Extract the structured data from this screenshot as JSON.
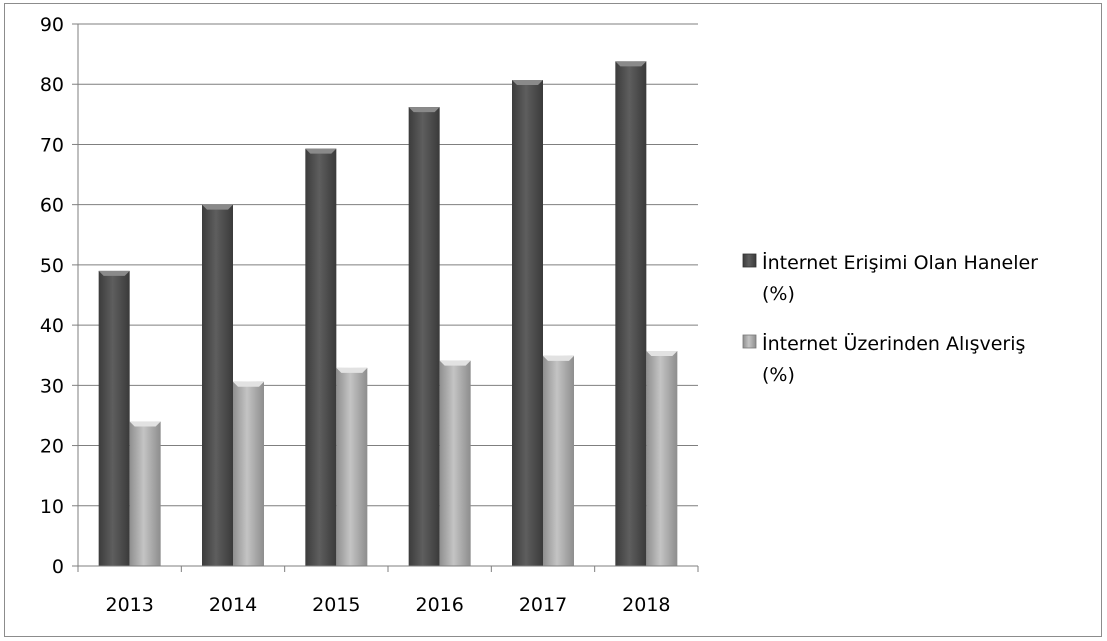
{
  "chart_data": {
    "type": "bar",
    "categories": [
      "2013",
      "2014",
      "2015",
      "2016",
      "2017",
      "2018"
    ],
    "series": [
      {
        "name": "İnternet Erişimi Olan Haneler (%)",
        "name_lines": [
          "İnternet Erişimi Olan Haneler",
          "(%)"
        ],
        "color": "#555555",
        "values": [
          49,
          60,
          69.3,
          76.2,
          80.7,
          83.8
        ]
      },
      {
        "name": "İnternet Üzerinden Alışveriş (%)",
        "name_lines": [
          "İnternet Üzerinden Alışveriş",
          "(%)"
        ],
        "color": "#a6a6a6",
        "values": [
          24,
          30.6,
          32.9,
          34.1,
          34.9,
          35.7
        ]
      }
    ],
    "ylim": [
      0,
      90
    ],
    "yticks": [
      "0",
      "10",
      "20",
      "30",
      "40",
      "50",
      "60",
      "70",
      "80",
      "90"
    ],
    "grid": true,
    "legend": "right"
  }
}
